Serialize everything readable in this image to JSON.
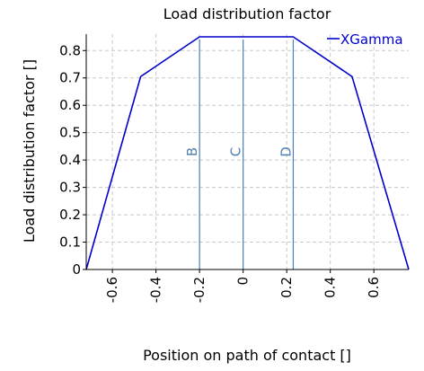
{
  "chart_data": {
    "type": "line",
    "title": "Load distribution factor",
    "xlabel": "Position on path of contact []",
    "ylabel": "Load distribution factor []",
    "xlim": [
      -0.72,
      0.76
    ],
    "ylim": [
      0,
      0.86
    ],
    "xticks": [
      -0.6,
      -0.4,
      -0.2,
      0,
      0.2,
      0.4,
      0.6
    ],
    "xtick_labels": [
      "-0.6",
      "-0.4",
      "-0.2",
      "0",
      "0.2",
      "0.4",
      "0.6"
    ],
    "yticks": [
      0,
      0.1,
      0.2,
      0.3,
      0.4,
      0.5,
      0.6,
      0.7,
      0.8
    ],
    "ytick_labels": [
      "0",
      "0.1",
      "0.2",
      "0.3",
      "0.4",
      "0.5",
      "0.6",
      "0.7",
      "0.8"
    ],
    "grid": true,
    "legend_position": "top-right",
    "series": [
      {
        "name": "XGamma",
        "color": "#0000cc",
        "x": [
          -0.72,
          -0.47,
          -0.2,
          0.23,
          0.5,
          0.76
        ],
        "y": [
          0,
          0.705,
          0.85,
          0.85,
          0.705,
          0
        ]
      }
    ],
    "markers": [
      {
        "label": "B",
        "x": -0.2,
        "color": "#4f7fb3"
      },
      {
        "label": "C",
        "x": 0.0,
        "color": "#4f7fb3"
      },
      {
        "label": "D",
        "x": 0.23,
        "color": "#4f7fb3"
      }
    ]
  }
}
